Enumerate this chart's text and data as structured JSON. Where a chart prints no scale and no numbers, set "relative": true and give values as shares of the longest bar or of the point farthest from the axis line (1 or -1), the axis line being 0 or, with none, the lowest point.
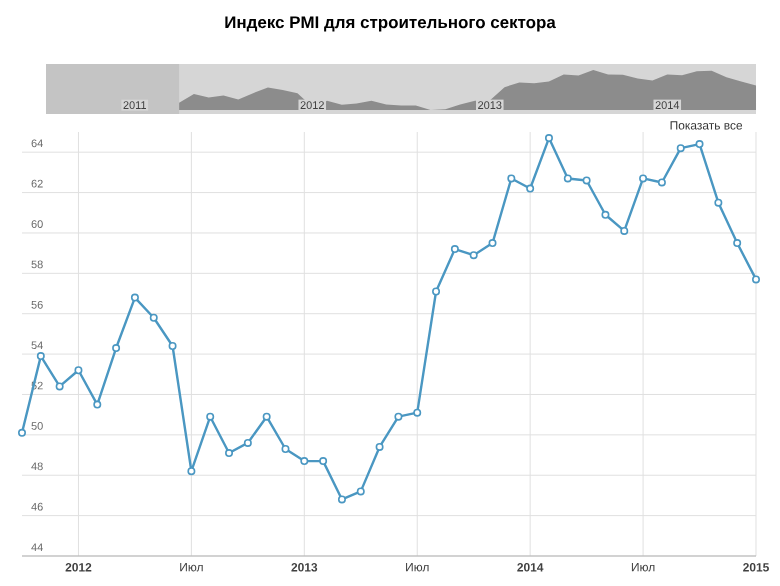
{
  "chart_data": [
    {
      "type": "area",
      "title": "Индекс PMI для строительного сектора",
      "relative": true,
      "color": "#8c8c8c",
      "x": [
        "2011-10",
        "2011-11",
        "2011-12",
        "2012-01",
        "2012-02",
        "2012-03",
        "2012-04",
        "2012-05",
        "2012-06",
        "2012-07",
        "2012-08",
        "2012-09",
        "2012-10",
        "2012-11",
        "2012-12",
        "2013-01",
        "2013-02",
        "2013-03",
        "2013-04",
        "2013-05",
        "2013-06",
        "2013-07",
        "2013-08",
        "2013-09",
        "2013-10",
        "2013-11",
        "2013-12",
        "2014-01",
        "2014-02",
        "2014-03",
        "2014-04",
        "2014-05",
        "2014-06",
        "2014-07",
        "2014-08",
        "2014-09",
        "2014-10",
        "2014-11",
        "2014-12",
        "2015-01"
      ],
      "values": [
        0.18,
        0.4,
        0.31,
        0.36,
        0.26,
        0.42,
        0.56,
        0.5,
        0.42,
        0.08,
        0.23,
        0.13,
        0.16,
        0.23,
        0.14,
        0.11,
        0.11,
        0,
        0.02,
        0.14,
        0.23,
        0.24,
        0.57,
        0.69,
        0.67,
        0.71,
        0.89,
        0.86,
        1,
        0.89,
        0.88,
        0.79,
        0.74,
        0.89,
        0.87,
        0.97,
        0.98,
        0.82,
        0.71,
        0.61
      ],
      "xlim": [
        "2011-01",
        "2015-01"
      ],
      "xticks": [
        {
          "value": "2011-07",
          "label": "2011"
        },
        {
          "value": "2012-07",
          "label": "2012"
        },
        {
          "value": "2013-07",
          "label": "2013"
        },
        {
          "value": "2014-07",
          "label": "2014"
        }
      ],
      "bands": [
        {
          "axis": "x",
          "from": "2011-01",
          "to": "2011-10",
          "color": "#c4c4c4"
        }
      ]
    },
    {
      "type": "line",
      "color": "#4a97c2",
      "marker": "circle",
      "grid": true,
      "x": [
        "2011-10",
        "2011-11",
        "2011-12",
        "2012-01",
        "2012-02",
        "2012-03",
        "2012-04",
        "2012-05",
        "2012-06",
        "2012-07",
        "2012-08",
        "2012-09",
        "2012-10",
        "2012-11",
        "2012-12",
        "2013-01",
        "2013-02",
        "2013-03",
        "2013-04",
        "2013-05",
        "2013-06",
        "2013-07",
        "2013-08",
        "2013-09",
        "2013-10",
        "2013-11",
        "2013-12",
        "2014-01",
        "2014-02",
        "2014-03",
        "2014-04",
        "2014-05",
        "2014-06",
        "2014-07",
        "2014-08",
        "2014-09",
        "2014-10",
        "2014-11",
        "2014-12",
        "2015-01"
      ],
      "values": [
        50.1,
        53.9,
        52.4,
        53.2,
        51.5,
        54.3,
        56.8,
        55.8,
        54.4,
        48.2,
        50.9,
        49.1,
        49.6,
        50.9,
        49.3,
        48.7,
        48.7,
        46.8,
        47.2,
        49.4,
        50.9,
        51.1,
        57.1,
        59.2,
        58.9,
        59.5,
        62.7,
        62.2,
        64.7,
        62.7,
        62.6,
        60.9,
        60.1,
        62.7,
        62.5,
        64.2,
        64.4,
        61.5,
        59.5,
        57.7
      ],
      "xlim": [
        "2011-10",
        "2015-01"
      ],
      "ylim": [
        44,
        65
      ],
      "yticks": [
        44,
        46,
        48,
        50,
        52,
        54,
        56,
        58,
        60,
        62,
        64
      ],
      "xticks": [
        {
          "value": "2012-01",
          "label": "2012"
        },
        {
          "value": "2012-07",
          "label": "Июл"
        },
        {
          "value": "2013-01",
          "label": "2013"
        },
        {
          "value": "2013-07",
          "label": "Июл"
        },
        {
          "value": "2014-01",
          "label": "2014"
        },
        {
          "value": "2014-07",
          "label": "Июл"
        },
        {
          "value": "2015-01",
          "label": "2015"
        }
      ],
      "annotations": [
        "Показать все"
      ]
    }
  ]
}
